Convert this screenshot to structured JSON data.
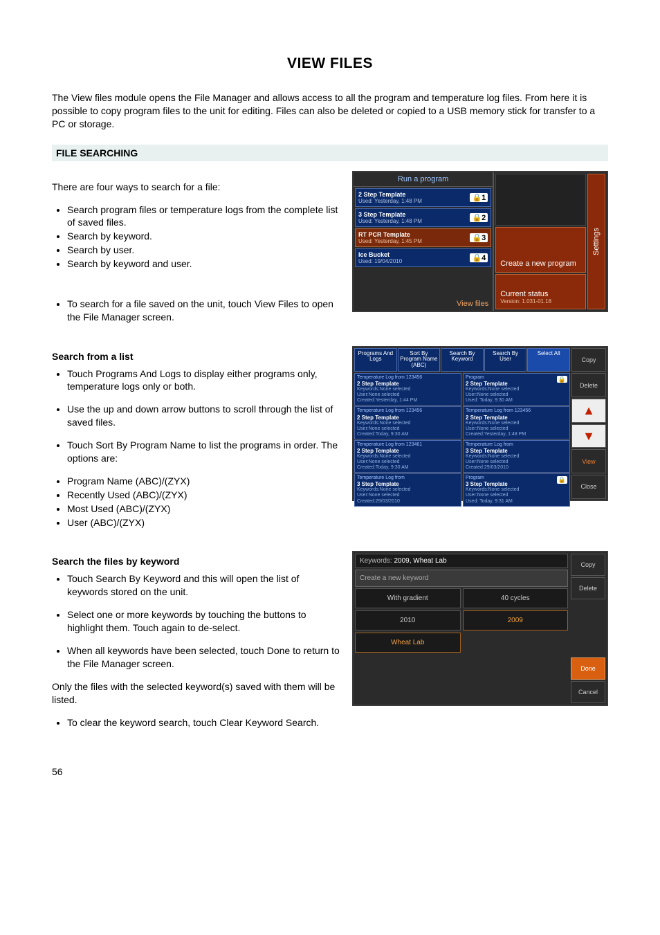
{
  "page": {
    "title": "VIEW FILES",
    "intro": "The View files module opens the File Manager and allows access to all the program and temperature log files. From here it is possible to copy program files to the unit for editing. Files can also be deleted or copied to a USB memory stick for transfer to a PC or storage.",
    "section_heading": "FILE SEARCHING",
    "page_number": "56"
  },
  "text": {
    "four_ways": "There are four ways to search for a file:",
    "ways": [
      "Search program files or temperature logs from the complete list of saved files.",
      "Search by keyword.",
      "Search by user.",
      "Search by keyword and user."
    ],
    "to_search_file": "To search for a file saved on the unit, touch View Files to open the File Manager screen.",
    "search_from_list_h": "Search from a list",
    "sfl_1": "Touch Programs And Logs to display either programs only, temperature logs only or both.",
    "sfl_2": "Use the up and down arrow buttons to scroll through the list of saved files.",
    "sfl_3": "Touch Sort By Program Name to list the programs in order. The options are:",
    "sort_options": [
      "Program Name (ABC)/(ZYX)",
      "Recently Used (ABC)/(ZYX)",
      "Most Used (ABC)/(ZYX)",
      "User (ABC)/(ZYX)"
    ],
    "search_keyword_h": "Search the files by keyword",
    "sk_1": "Touch Search By Keyword and this will open the list of keywords stored on the unit.",
    "sk_2": "Select one or more keywords by touching the buttons to highlight them. Touch again to de-select.",
    "sk_3": "When all keywords have been selected, touch Done to return to the File Manager screen.",
    "sk_only": "Only the files with the selected keyword(s) saved with them will be listed.",
    "sk_clear": "To clear the keyword search, touch Clear Keyword Search."
  },
  "shot1": {
    "run_a_program": "Run a program",
    "templates": [
      {
        "name": "2 Step Template",
        "used": "Used: Yesterday, 1:48 PM",
        "badge": "1",
        "alt": false
      },
      {
        "name": "3 Step Template",
        "used": "Used: Yesterday, 1:48 PM",
        "badge": "2",
        "alt": false
      },
      {
        "name": "RT PCR Template",
        "used": "Used: Yesterday, 1:45 PM",
        "badge": "3",
        "alt": true
      },
      {
        "name": "Ice Bucket",
        "used": "Used: 19/04/2010",
        "badge": "4",
        "alt": false
      }
    ],
    "view_files": "View files",
    "create_new": "Create a new program",
    "current_status": "Current status",
    "version": "Version: 1.031-01.18",
    "settings": "Settings"
  },
  "shot2": {
    "topbar": [
      "Programs And Logs",
      "Sort By Program Name (ABC)",
      "Search By Keyword",
      "Search By User",
      "Select All"
    ],
    "left_items": [
      {
        "l1": "Temperature Log from 123456",
        "l2": "2 Step Template",
        "l3": "Keywords:None selected",
        "l4": "User:None selected",
        "l5": "Created:Yesterday, 1:44 PM"
      },
      {
        "l1": "Temperature Log from 123456",
        "l2": "2 Step Template",
        "l3": "Keywords:None selected",
        "l4": "User:None selected",
        "l5": "Created:Today, 9:30 AM"
      },
      {
        "l1": "Temperature Log from 123461",
        "l2": "2 Step Template",
        "l3": "Keywords:None selected",
        "l4": "User:None selected",
        "l5": "Created:Today, 9:30 AM"
      },
      {
        "l1": "Temperature Log from",
        "l2": "3 Step Template",
        "l3": "Keywords:None selected",
        "l4": "User:None selected",
        "l5": "Created:29/03/2010"
      }
    ],
    "right_items": [
      {
        "l1": "Program",
        "l2": "2 Step Template",
        "l3": "Keywords:None selected",
        "l4": "User:None selected",
        "l5": "Used: Today, 9:30 AM",
        "lock": true
      },
      {
        "l1": "Temperature Log from 123456",
        "l2": "2 Step Template",
        "l3": "Keywords:None selected",
        "l4": "User:None selected",
        "l5": "Created:Yesterday, 1:48 PM"
      },
      {
        "l1": "Temperature Log from",
        "l2": "3 Step Template",
        "l3": "Keywords:None selected",
        "l4": "User:None selected",
        "l5": "Created:29/03/2010"
      },
      {
        "l1": "Program",
        "l2": "3 Step Template",
        "l3": "Keywords:None selected",
        "l4": "User:None selected",
        "l5": "Used: Today, 9:31 AM",
        "lock": true
      }
    ],
    "side": {
      "copy": "Copy",
      "delete": "Delete",
      "up": "▲",
      "down": "▼",
      "view": "View",
      "close": "Close"
    }
  },
  "shot3": {
    "kw_label": "Keywords:",
    "kw_value": "2009, Wheat Lab",
    "create": "Create a new keyword",
    "buttons": [
      {
        "label": "With gradient",
        "sel": false
      },
      {
        "label": "40 cycles",
        "sel": false
      },
      {
        "label": "2010",
        "sel": false
      },
      {
        "label": "2009",
        "sel": true
      },
      {
        "label": "Wheat Lab",
        "sel": true
      }
    ],
    "side": {
      "copy": "Copy",
      "delete": "Delete",
      "done": "Done",
      "cancel": "Cancel"
    }
  }
}
